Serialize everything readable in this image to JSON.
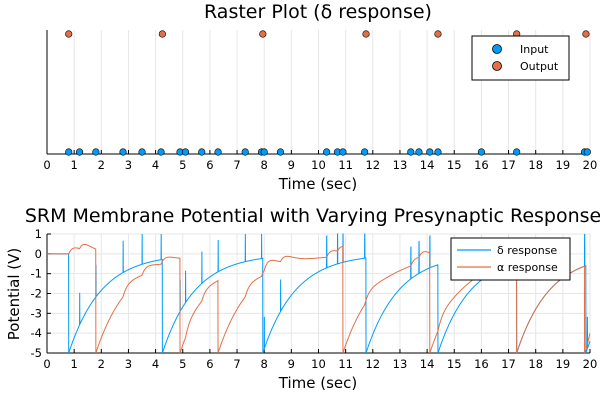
{
  "colors": {
    "input": "#009AF9",
    "output": "#E26F46"
  },
  "chart_data": [
    {
      "type": "scatter",
      "title": "Raster Plot (δ response)",
      "xlabel": "Time (sec)",
      "ylabel": "",
      "xlim": [
        0,
        20
      ],
      "xticks": [
        "0",
        "1",
        "2",
        "3",
        "4",
        "5",
        "6",
        "7",
        "8",
        "9",
        "10",
        "11",
        "12",
        "13",
        "14",
        "15",
        "16",
        "17",
        "18",
        "19",
        "20"
      ],
      "grid": true,
      "legend_position": "top-right",
      "series": [
        {
          "name": "Input",
          "y_level": "low",
          "x": [
            0.8,
            1.2,
            1.8,
            2.8,
            3.5,
            4.2,
            4.9,
            5.1,
            5.7,
            6.3,
            7.3,
            7.9,
            8.0,
            8.6,
            10.3,
            10.7,
            10.9,
            11.7,
            13.4,
            13.7,
            14.1,
            14.4,
            16.0,
            17.3,
            19.8,
            19.9
          ]
        },
        {
          "name": "Output",
          "y_level": "high",
          "x": [
            0.8,
            4.25,
            7.95,
            11.75,
            14.4,
            17.3,
            19.85
          ]
        }
      ]
    },
    {
      "type": "line",
      "title": "SRM Membrane Potential with Varying Presynaptic Responses",
      "xlabel": "Time (sec)",
      "ylabel": "Potential (V)",
      "xlim": [
        0,
        20
      ],
      "ylim": [
        -5,
        1
      ],
      "xticks": [
        "0",
        "1",
        "2",
        "3",
        "4",
        "5",
        "6",
        "7",
        "8",
        "9",
        "10",
        "11",
        "12",
        "13",
        "14",
        "15",
        "16",
        "17",
        "18",
        "19",
        "20"
      ],
      "yticks": [
        "1",
        "0",
        "-1",
        "-2",
        "-3",
        "-4",
        "-5"
      ],
      "grid": true,
      "legend_position": "top-right",
      "series": [
        {
          "name": "δ response",
          "response": "delta",
          "reset": -5,
          "tau": 1.2,
          "amp": 1.0
        },
        {
          "name": "α response",
          "response": "alpha",
          "reset": -5,
          "tau": 1.2,
          "amp": 0.5
        }
      ],
      "input_spikes": [
        0.8,
        1.2,
        1.8,
        2.8,
        3.5,
        4.2,
        4.9,
        5.1,
        5.7,
        6.3,
        7.3,
        7.9,
        8.0,
        8.6,
        10.3,
        10.7,
        10.9,
        11.7,
        13.4,
        13.7,
        14.1,
        14.4,
        16.0,
        17.3,
        19.8,
        19.9
      ],
      "output_spikes": {
        "δ response": [
          0.8,
          4.25,
          7.95,
          11.75,
          14.4,
          17.3,
          19.85
        ],
        "α response": [
          1.8,
          4.9,
          6.3,
          10.9,
          14.1,
          17.3,
          19.8
        ]
      }
    }
  ]
}
